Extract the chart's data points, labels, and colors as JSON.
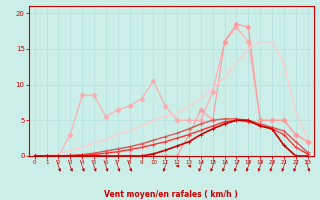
{
  "xlabel": "Vent moyen/en rafales ( km/h )",
  "xlim": [
    -0.5,
    23.5
  ],
  "ylim": [
    0,
    21
  ],
  "xticks": [
    0,
    1,
    2,
    3,
    4,
    5,
    6,
    7,
    8,
    9,
    10,
    11,
    12,
    13,
    14,
    15,
    16,
    17,
    18,
    19,
    20,
    21,
    22,
    23
  ],
  "yticks": [
    0,
    5,
    10,
    15,
    20
  ],
  "background_color": "#cceee8",
  "grid_color": "#aadddd",
  "lines": [
    {
      "x": [
        0,
        1,
        2,
        3,
        4,
        5,
        6,
        7,
        8,
        9,
        10,
        11,
        12,
        13,
        14,
        15,
        16,
        17,
        18,
        19,
        20,
        21,
        22,
        23
      ],
      "y": [
        0,
        0,
        0,
        3,
        8.5,
        8.5,
        5.5,
        6.5,
        7,
        8,
        10.5,
        7,
        5,
        5,
        5,
        9,
        16,
        18,
        16,
        5,
        5,
        5,
        3,
        2
      ],
      "color": "#ffaaaa",
      "marker": "D",
      "lw": 0.8,
      "ms": 2.5
    },
    {
      "x": [
        0,
        1,
        2,
        3,
        4,
        5,
        6,
        7,
        8,
        9,
        10,
        11,
        12,
        13,
        14,
        15,
        16,
        17,
        18,
        19,
        20,
        21,
        22,
        23
      ],
      "y": [
        0,
        0,
        0,
        0,
        0,
        0,
        0,
        0,
        0,
        0,
        0,
        0,
        0,
        3,
        6.5,
        5,
        16,
        18.5,
        18,
        5,
        5,
        5,
        3,
        2
      ],
      "color": "#ff9999",
      "marker": "D",
      "lw": 0.8,
      "ms": 2.5
    },
    {
      "x": [
        0,
        1,
        2,
        3,
        4,
        5,
        6,
        7,
        8,
        9,
        10,
        11,
        12,
        13,
        14,
        15,
        16,
        17,
        18,
        19,
        20,
        21,
        22,
        23
      ],
      "y": [
        0,
        0,
        0.3,
        0.8,
        1.2,
        1.8,
        2.3,
        3.0,
        3.5,
        4.2,
        5,
        5.5,
        6,
        7,
        8,
        9.5,
        11,
        13,
        15,
        16,
        16,
        13,
        6,
        2.5
      ],
      "color": "#ffcccc",
      "marker": null,
      "lw": 1.0,
      "ms": 0
    },
    {
      "x": [
        0,
        1,
        2,
        3,
        4,
        5,
        6,
        7,
        8,
        9,
        10,
        11,
        12,
        13,
        14,
        15,
        16,
        17,
        18,
        19,
        20,
        21,
        22,
        23
      ],
      "y": [
        0,
        0,
        0,
        0.1,
        0.2,
        0.4,
        0.7,
        1.0,
        1.3,
        1.7,
        2.2,
        2.7,
        3.2,
        3.8,
        4.5,
        5,
        5.2,
        5.2,
        5.0,
        4.5,
        4.0,
        3.5,
        2.0,
        0.5
      ],
      "color": "#dd5555",
      "marker": "+",
      "lw": 1.0,
      "ms": 3
    },
    {
      "x": [
        0,
        1,
        2,
        3,
        4,
        5,
        6,
        7,
        8,
        9,
        10,
        11,
        12,
        13,
        14,
        15,
        16,
        17,
        18,
        19,
        20,
        21,
        22,
        23
      ],
      "y": [
        0,
        0,
        0,
        0,
        0.1,
        0.2,
        0.4,
        0.6,
        0.9,
        1.2,
        1.6,
        2.0,
        2.5,
        3.0,
        3.6,
        4.2,
        4.8,
        5.0,
        4.8,
        4.3,
        3.8,
        3.0,
        1.2,
        0.3
      ],
      "color": "#ff3333",
      "marker": "+",
      "lw": 1.0,
      "ms": 3
    },
    {
      "x": [
        0,
        1,
        2,
        3,
        4,
        5,
        6,
        7,
        8,
        9,
        10,
        11,
        12,
        13,
        14,
        15,
        16,
        17,
        18,
        19,
        20,
        21,
        22,
        23
      ],
      "y": [
        0,
        0,
        0,
        0,
        0,
        0,
        0,
        0,
        0,
        0,
        0.3,
        0.8,
        1.4,
        2.0,
        3.0,
        3.8,
        4.5,
        5.0,
        5.0,
        4.2,
        3.8,
        1.5,
        0,
        0
      ],
      "color": "#cc0000",
      "marker": "+",
      "lw": 1.2,
      "ms": 3.5
    }
  ],
  "wind_arrows": {
    "x": [
      0,
      1,
      2,
      3,
      4,
      5,
      6,
      7,
      8,
      9,
      10,
      11,
      12,
      13,
      14,
      15,
      16,
      17,
      18,
      19,
      20,
      21,
      22,
      23
    ],
    "angles": [
      200,
      0,
      45,
      45,
      45,
      45,
      45,
      45,
      45,
      180,
      0,
      315,
      270,
      270,
      315,
      315,
      315,
      315,
      315,
      315,
      315,
      315,
      315,
      45
    ]
  }
}
